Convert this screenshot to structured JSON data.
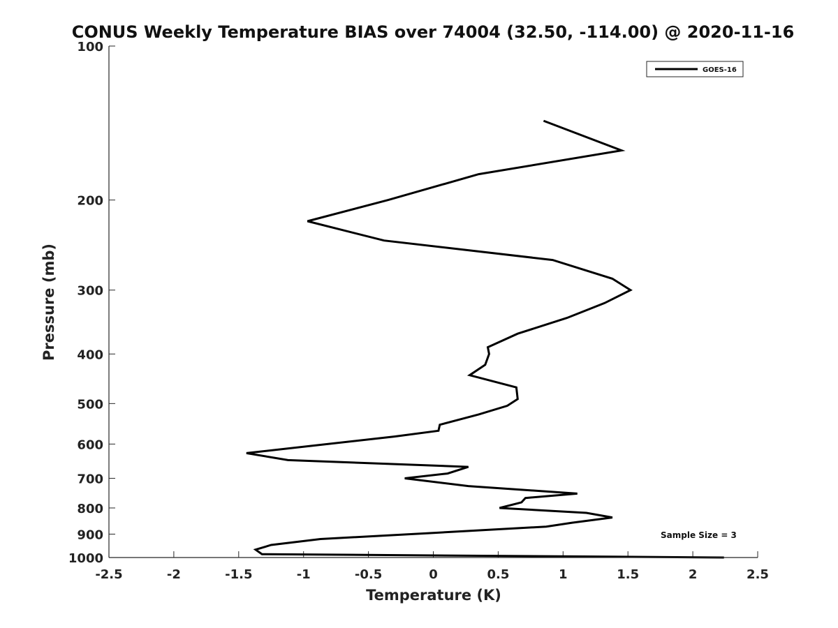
{
  "chart_data": {
    "type": "line",
    "title": "CONUS Weekly Temperature BIAS over 74004 (32.50, -114.00) @ 2020-11-16",
    "xlabel": "Temperature (K)",
    "ylabel": "Pressure (mb)",
    "xlim": [
      -2.5,
      2.5
    ],
    "ylim": [
      1000,
      100
    ],
    "y_scale": "log",
    "grid": false,
    "legend_position": "top-right",
    "x_ticks": [
      -2.5,
      -2,
      -1.5,
      -1,
      -0.5,
      0,
      0.5,
      1,
      1.5,
      2,
      2.5
    ],
    "x_tick_labels": [
      "-2.5",
      "-2",
      "-1.5",
      "-1",
      "-0.5",
      "0",
      "0.5",
      "1",
      "1.5",
      "2",
      "2.5"
    ],
    "y_ticks": [
      100,
      200,
      300,
      400,
      500,
      600,
      700,
      800,
      900,
      1000
    ],
    "y_tick_labels": [
      "100",
      "200",
      "300",
      "400",
      "500",
      "600",
      "700",
      "800",
      "900",
      "1000"
    ],
    "series": [
      {
        "name": "GOES-16",
        "color": "#000000",
        "points": [
          {
            "x": 0.85,
            "y": 140
          },
          {
            "x": 1.45,
            "y": 160
          },
          {
            "x": 0.35,
            "y": 178
          },
          {
            "x": -0.35,
            "y": 200
          },
          {
            "x": -0.97,
            "y": 220
          },
          {
            "x": -0.38,
            "y": 240
          },
          {
            "x": 0.92,
            "y": 262
          },
          {
            "x": 1.38,
            "y": 285
          },
          {
            "x": 1.52,
            "y": 300
          },
          {
            "x": 1.32,
            "y": 318
          },
          {
            "x": 1.03,
            "y": 340
          },
          {
            "x": 0.65,
            "y": 365
          },
          {
            "x": 0.42,
            "y": 388
          },
          {
            "x": 0.43,
            "y": 400
          },
          {
            "x": 0.4,
            "y": 420
          },
          {
            "x": 0.28,
            "y": 440
          },
          {
            "x": 0.64,
            "y": 465
          },
          {
            "x": 0.65,
            "y": 490
          },
          {
            "x": 0.57,
            "y": 505
          },
          {
            "x": 0.35,
            "y": 525
          },
          {
            "x": 0.05,
            "y": 550
          },
          {
            "x": 0.04,
            "y": 565
          },
          {
            "x": -0.3,
            "y": 580
          },
          {
            "x": -1.44,
            "y": 625
          },
          {
            "x": -1.12,
            "y": 645
          },
          {
            "x": 0.27,
            "y": 665
          },
          {
            "x": 0.11,
            "y": 685
          },
          {
            "x": -0.22,
            "y": 700
          },
          {
            "x": 0.27,
            "y": 725
          },
          {
            "x": 1.11,
            "y": 750
          },
          {
            "x": 0.71,
            "y": 765
          },
          {
            "x": 0.68,
            "y": 780
          },
          {
            "x": 0.51,
            "y": 800
          },
          {
            "x": 1.18,
            "y": 818
          },
          {
            "x": 1.38,
            "y": 835
          },
          {
            "x": 1.07,
            "y": 855
          },
          {
            "x": 0.87,
            "y": 870
          },
          {
            "x": 0.0,
            "y": 895
          },
          {
            "x": -0.87,
            "y": 920
          },
          {
            "x": -1.25,
            "y": 945
          },
          {
            "x": -1.37,
            "y": 965
          },
          {
            "x": -1.32,
            "y": 985
          },
          {
            "x": 2.24,
            "y": 1000
          }
        ]
      }
    ]
  },
  "annotation": "Sample Size = 3",
  "legend": {
    "label": "GOES-16"
  }
}
